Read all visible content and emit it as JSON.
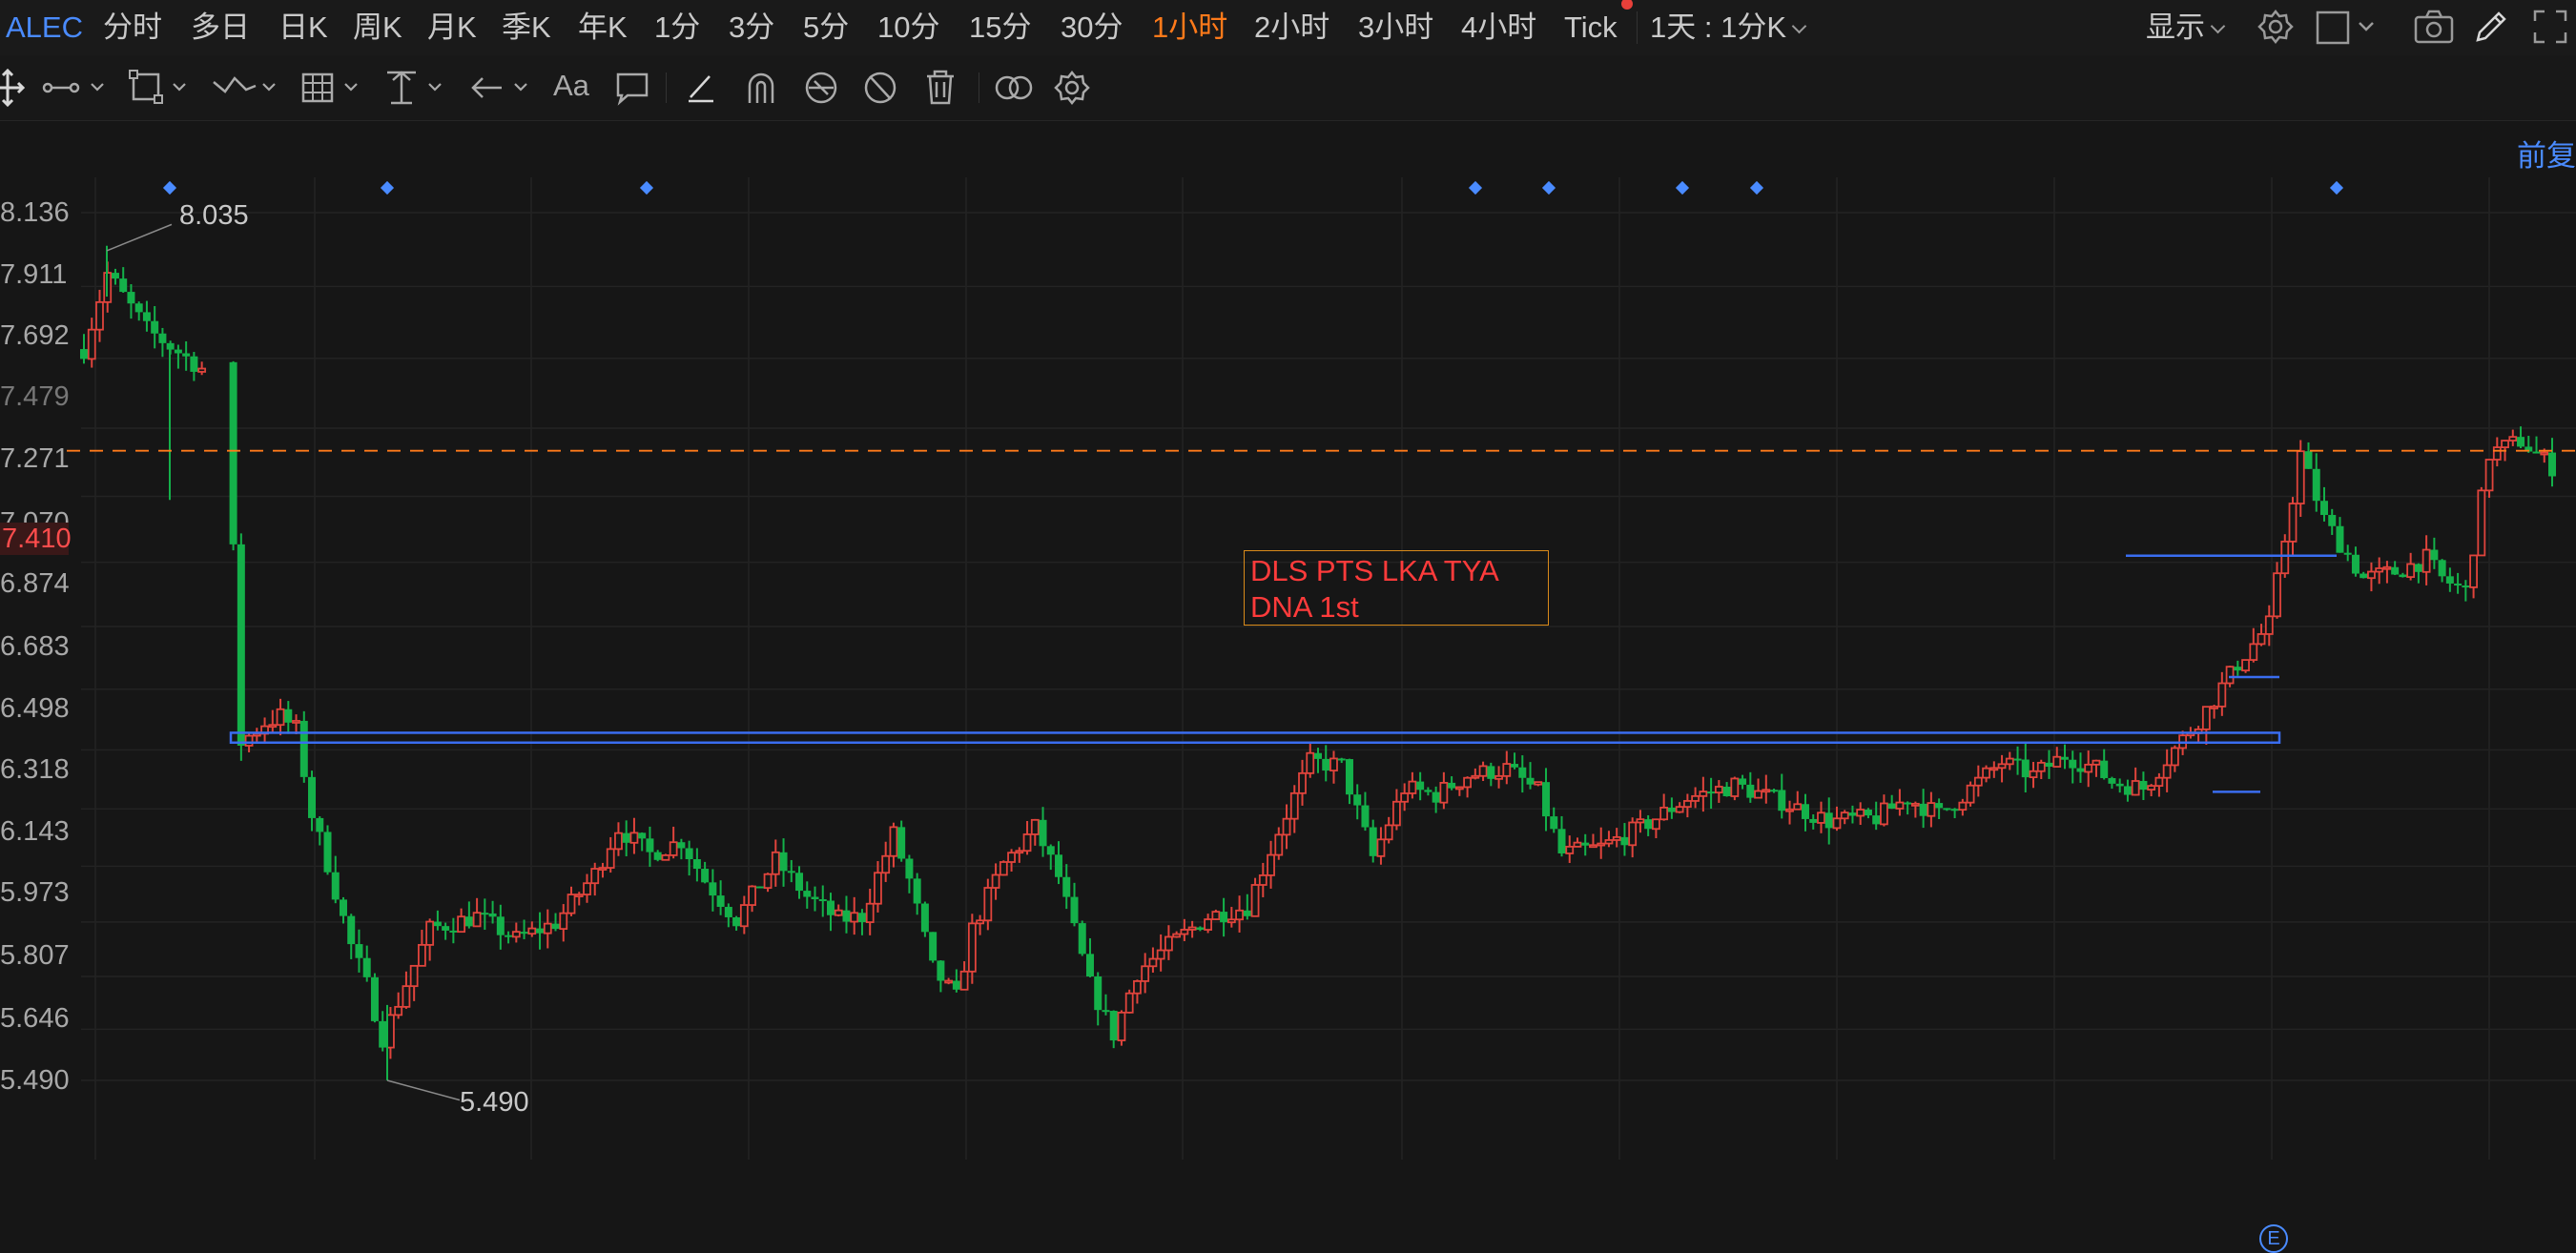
{
  "topbar": {
    "symbol": "ALEC",
    "timeframes": [
      "分时",
      "多日",
      "日K",
      "周K",
      "月K",
      "季K",
      "年K",
      "1分",
      "3分",
      "5分",
      "10分",
      "15分",
      "30分",
      "1小时",
      "2小时",
      "3小时",
      "4小时",
      "Tick"
    ],
    "active_timeframe": "1小时",
    "range_selector": "1天 : 1分K",
    "display_label": "显示"
  },
  "toolbar": {
    "tools": [
      "move-tool",
      "line-tool",
      "shape-tool",
      "wave-tool",
      "grid-tool",
      "measure-tool",
      "arrow-tool",
      "text-tool",
      "note-tool",
      "pen-tool",
      "magnet-tool",
      "eye-tool",
      "hide-tool",
      "delete-tool",
      "compare-tool",
      "settings-tool"
    ]
  },
  "chart": {
    "adjust_label": "前复",
    "current_price_label": "7.410",
    "high_annotation": "8.035",
    "low_annotation": "5.490",
    "note_line1": "DLS PTS LKA TYA",
    "note_line2": "DNA 1st",
    "event_badge": "E",
    "y_axis_labels": [
      "8.136",
      "7.911",
      "7.692",
      "7.479",
      "7.271",
      "7.070",
      "6.874",
      "6.683",
      "6.498",
      "6.318",
      "6.143",
      "5.973",
      "5.807",
      "5.646",
      "5.490"
    ],
    "colors": {
      "up": "#e0443c",
      "down": "#14b14a",
      "accent": "#ff7a1a",
      "line": "#3a6df0",
      "note_border": "#d98a1a"
    }
  },
  "chart_data": {
    "type": "candlestick",
    "ylim": [
      5.4,
      8.18
    ],
    "current_price": 7.41,
    "high": 8.035,
    "low": 5.49,
    "horizontal_levels": [
      6.55,
      6.52,
      6.4,
      6.37,
      6.72,
      7.09
    ],
    "event_markers": 9,
    "candle_count": 245
  }
}
